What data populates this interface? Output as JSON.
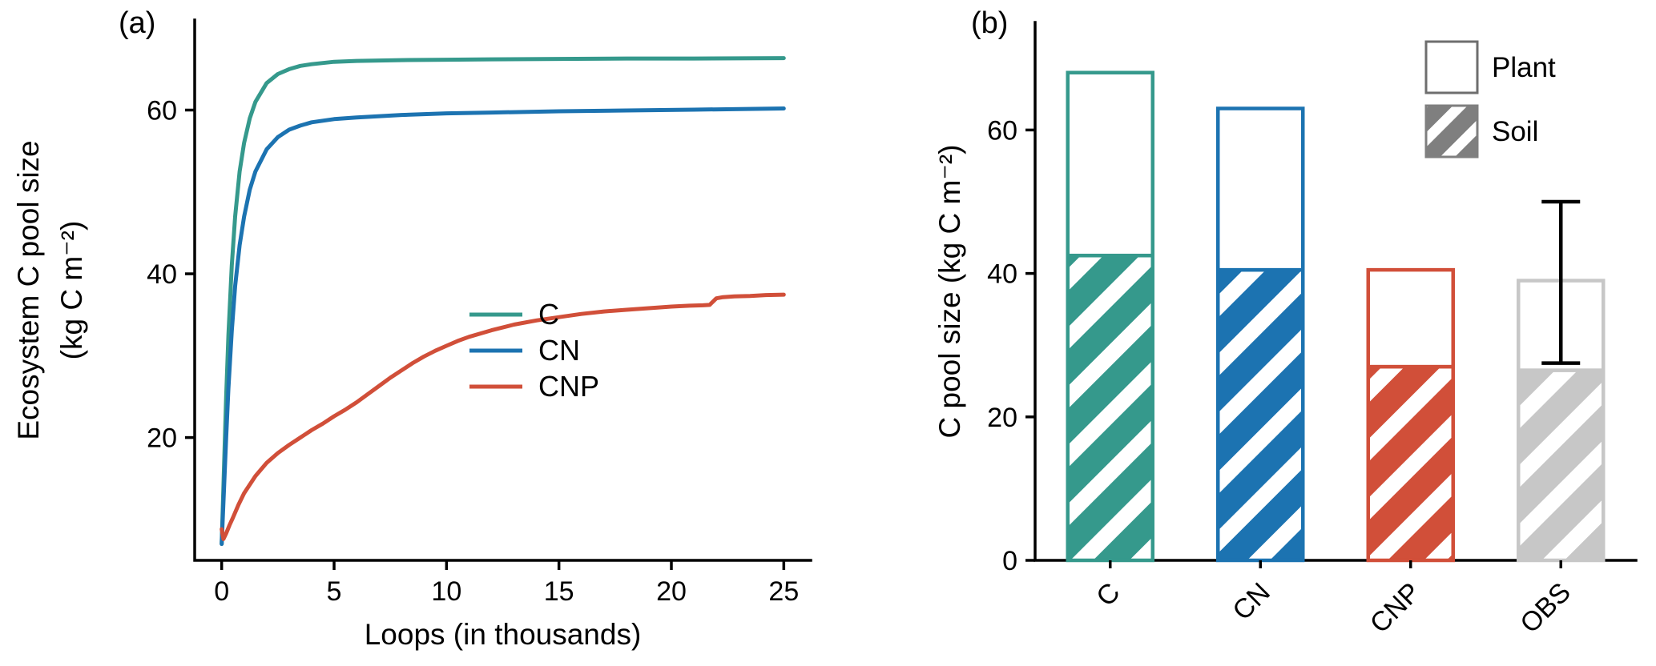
{
  "figure": {
    "panel_a_label": "(a)",
    "panel_b_label": "(b)",
    "background": "#ffffff",
    "text_color": "#000000"
  },
  "chart_data": [
    {
      "id": "ecosystem-c-line-chart",
      "type": "line",
      "title": "",
      "xlabel": "Loops (in thousands)",
      "ylabel_lines": [
        "Ecosystem C pool size",
        "(kg C m⁻²)"
      ],
      "xlim": [
        -1.2,
        26.2
      ],
      "ylim": [
        5,
        71
      ],
      "xticks": [
        0,
        5,
        10,
        15,
        20,
        25
      ],
      "yticks": [
        20,
        40,
        60
      ],
      "grid": false,
      "legend_position": "inside lower right",
      "series": [
        {
          "name": "C",
          "color": "#35998C",
          "x": [
            0,
            0.1,
            0.2,
            0.3,
            0.45,
            0.6,
            0.8,
            1.0,
            1.25,
            1.5,
            2.0,
            2.5,
            3.0,
            3.5,
            4.0,
            5.0,
            6.0,
            8.0,
            10.0,
            12.0,
            15.0,
            18.0,
            21.0,
            25.0
          ],
          "y": [
            7.0,
            16.0,
            25.0,
            32.5,
            41.0,
            47.0,
            52.5,
            56.0,
            59.0,
            61.0,
            63.3,
            64.4,
            65.0,
            65.4,
            65.6,
            65.9,
            66.0,
            66.1,
            66.15,
            66.2,
            66.25,
            66.3,
            66.3,
            66.35
          ]
        },
        {
          "name": "CN",
          "color": "#1C73B1",
          "x": [
            0,
            0.1,
            0.2,
            0.3,
            0.45,
            0.6,
            0.8,
            1.0,
            1.25,
            1.5,
            2.0,
            2.5,
            3.0,
            3.5,
            4.0,
            5.0,
            6.0,
            8.0,
            10.0,
            12.0,
            15.0,
            18.0,
            21.0,
            25.0
          ],
          "y": [
            7.0,
            13.5,
            20.0,
            26.0,
            33.0,
            38.5,
            43.5,
            47.0,
            50.3,
            52.5,
            55.2,
            56.7,
            57.6,
            58.1,
            58.5,
            58.9,
            59.1,
            59.4,
            59.6,
            59.7,
            59.85,
            59.95,
            60.05,
            60.2
          ]
        },
        {
          "name": "CNP",
          "color": "#D14F39",
          "x": [
            0,
            0.08,
            0.2,
            0.35,
            0.5,
            0.75,
            1.0,
            1.5,
            2.0,
            2.5,
            3.0,
            3.5,
            4.0,
            4.5,
            5.0,
            5.5,
            6.0,
            6.5,
            7.0,
            7.5,
            8.0,
            8.5,
            9.0,
            9.5,
            10.0,
            10.5,
            11.0,
            12.0,
            13.0,
            14.0,
            15.0,
            16.0,
            17.0,
            18.0,
            19.0,
            20.0,
            20.8,
            21.4,
            21.7,
            21.85,
            22.0,
            22.3,
            22.8,
            23.5,
            24.2,
            25.0
          ],
          "y": [
            8.8,
            7.6,
            8.3,
            9.3,
            10.2,
            11.8,
            13.2,
            15.3,
            16.9,
            18.1,
            19.1,
            20.0,
            20.9,
            21.7,
            22.6,
            23.4,
            24.3,
            25.3,
            26.3,
            27.3,
            28.2,
            29.1,
            29.9,
            30.6,
            31.2,
            31.8,
            32.3,
            33.1,
            33.8,
            34.3,
            34.7,
            35.1,
            35.4,
            35.6,
            35.8,
            36.0,
            36.1,
            36.15,
            36.2,
            36.6,
            37.0,
            37.15,
            37.25,
            37.3,
            37.4,
            37.45
          ]
        }
      ]
    },
    {
      "id": "c-pool-stacked-bar-chart",
      "type": "bar",
      "title": "",
      "xlabel": "",
      "ylabel": "C pool size (kg C m⁻²)",
      "categories": [
        "C",
        "CN",
        "CNP",
        "OBS"
      ],
      "bar_colors": [
        "#35998C",
        "#1C73B1",
        "#D14F39",
        "#C7C7C7"
      ],
      "ylim": [
        0,
        75
      ],
      "yticks": [
        0,
        20,
        40,
        60
      ],
      "grid": false,
      "stacked": true,
      "series": [
        {
          "name": "Soil",
          "style": "hatched",
          "values": [
            42.5,
            40.5,
            27.0,
            26.5
          ]
        },
        {
          "name": "Plant",
          "style": "open",
          "values": [
            25.5,
            22.5,
            13.5,
            12.5
          ]
        }
      ],
      "totals": [
        68.0,
        63.0,
        40.5,
        39.0
      ],
      "error_bar": {
        "category": "OBS",
        "low": 27.5,
        "high": 50.0,
        "color": "#000000"
      },
      "legend": {
        "position": "inside upper right",
        "entries": [
          {
            "label": "Plant",
            "swatch": "open",
            "swatch_color": "#6e6e6e"
          },
          {
            "label": "Soil",
            "swatch": "hatched",
            "swatch_color": "#7f7f7f"
          }
        ]
      }
    }
  ]
}
